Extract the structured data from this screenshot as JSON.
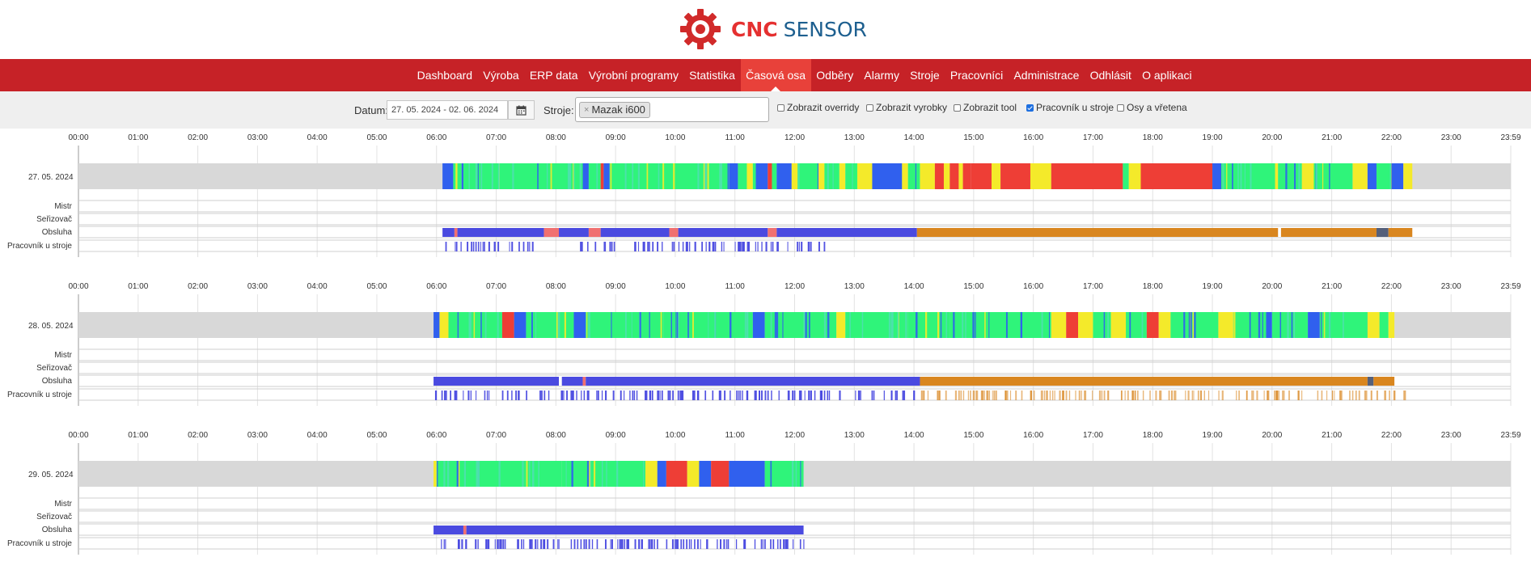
{
  "brand": {
    "cnc": "CNC",
    "sensor": "SENSOR"
  },
  "nav": [
    {
      "label": "Dashboard",
      "active": false
    },
    {
      "label": "Výroba",
      "active": false
    },
    {
      "label": "ERP data",
      "active": false
    },
    {
      "label": "Výrobní programy",
      "active": false
    },
    {
      "label": "Statistika",
      "active": false
    },
    {
      "label": "Časová osa",
      "active": true
    },
    {
      "label": "Odběry",
      "active": false
    },
    {
      "label": "Alarmy",
      "active": false
    },
    {
      "label": "Stroje",
      "active": false
    },
    {
      "label": "Pracovníci",
      "active": false
    },
    {
      "label": "Administrace",
      "active": false
    },
    {
      "label": "Odhlásit",
      "active": false
    },
    {
      "label": "O aplikaci",
      "active": false
    }
  ],
  "filters": {
    "date_label": "Datum:",
    "date_value": "27. 05. 2024 - 02. 06. 2024",
    "machine_label": "Stroje:",
    "machine_tag": "Mazak i600",
    "machine_tag_remove": "×",
    "checkboxes": [
      {
        "label": "Zobrazit overridy",
        "checked": false
      },
      {
        "label": "Zobrazit vyrobky",
        "checked": false
      },
      {
        "label": "Zobrazit tool",
        "checked": false
      },
      {
        "label": "Pracovník u stroje",
        "checked": true
      },
      {
        "label": "Osy a vřetena",
        "checked": false
      }
    ]
  },
  "colors": {
    "idle": "#d8d8d8",
    "running": "#2ff47a",
    "setup": "#3060ee",
    "stop": "#ee3e36",
    "warn": "#f4ea2a",
    "teal": "#4fe0b0",
    "operator": "#4a4ae0",
    "orange": "#d9861f",
    "grey_op": "#55607a",
    "pink": "#f07070"
  },
  "hours": [
    "00:00",
    "01:00",
    "02:00",
    "03:00",
    "04:00",
    "05:00",
    "06:00",
    "07:00",
    "08:00",
    "09:00",
    "10:00",
    "11:00",
    "12:00",
    "13:00",
    "14:00",
    "15:00",
    "16:00",
    "17:00",
    "18:00",
    "19:00",
    "20:00",
    "21:00",
    "22:00",
    "23:00",
    "23:59"
  ],
  "row_labels": {
    "mistr": "Mistr",
    "serizovac": "Seřizovač",
    "obsluha": "Obsluha",
    "pracovnik": "Pracovník u stroje"
  },
  "days": [
    {
      "date": "27. 05. 2024",
      "active_range": [
        6.1,
        22.35
      ],
      "segments": [
        [
          6.1,
          6.28,
          "setup"
        ],
        [
          6.28,
          6.32,
          "running"
        ],
        [
          6.32,
          6.35,
          "warn"
        ],
        [
          6.35,
          6.42,
          "running"
        ],
        [
          6.42,
          6.45,
          "setup"
        ],
        [
          6.45,
          8.45,
          "running"
        ],
        [
          8.45,
          8.55,
          "setup"
        ],
        [
          8.55,
          8.75,
          "running"
        ],
        [
          8.75,
          8.8,
          "stop"
        ],
        [
          8.8,
          8.9,
          "setup"
        ],
        [
          8.9,
          10.9,
          "running"
        ],
        [
          10.9,
          11.05,
          "setup"
        ],
        [
          11.05,
          11.2,
          "running"
        ],
        [
          11.2,
          11.3,
          "warn"
        ],
        [
          11.3,
          11.35,
          "running"
        ],
        [
          11.35,
          11.55,
          "setup"
        ],
        [
          11.55,
          11.62,
          "stop"
        ],
        [
          11.62,
          11.7,
          "running"
        ],
        [
          11.7,
          11.95,
          "setup"
        ],
        [
          11.95,
          12.05,
          "warn"
        ],
        [
          12.05,
          12.4,
          "running"
        ],
        [
          12.4,
          12.5,
          "warn"
        ],
        [
          12.5,
          12.75,
          "running"
        ],
        [
          12.75,
          12.85,
          "warn"
        ],
        [
          12.85,
          13.05,
          "running"
        ],
        [
          13.05,
          13.3,
          "warn"
        ],
        [
          13.3,
          13.8,
          "setup"
        ],
        [
          13.8,
          13.9,
          "warn"
        ],
        [
          13.9,
          14.1,
          "running"
        ],
        [
          14.1,
          14.35,
          "warn"
        ],
        [
          14.35,
          14.5,
          "stop"
        ],
        [
          14.5,
          14.6,
          "warn"
        ],
        [
          14.6,
          14.75,
          "stop"
        ],
        [
          14.75,
          14.82,
          "warn"
        ],
        [
          14.82,
          14.95,
          "stop"
        ],
        [
          14.95,
          15.3,
          "stop"
        ],
        [
          15.3,
          15.45,
          "warn"
        ],
        [
          15.45,
          15.95,
          "stop"
        ],
        [
          15.95,
          16.3,
          "warn"
        ],
        [
          16.3,
          17.5,
          "stop"
        ],
        [
          17.5,
          17.6,
          "running"
        ],
        [
          17.6,
          17.8,
          "warn"
        ],
        [
          17.8,
          19.0,
          "stop"
        ],
        [
          19.0,
          19.15,
          "setup"
        ],
        [
          19.15,
          20.05,
          "running"
        ],
        [
          20.05,
          20.1,
          "warn"
        ],
        [
          20.1,
          20.5,
          "running"
        ],
        [
          20.5,
          20.7,
          "warn"
        ],
        [
          20.7,
          21.35,
          "running"
        ],
        [
          21.35,
          21.6,
          "warn"
        ],
        [
          21.6,
          21.75,
          "setup"
        ],
        [
          21.75,
          22.0,
          "running"
        ],
        [
          22.0,
          22.2,
          "setup"
        ],
        [
          22.2,
          22.35,
          "warn"
        ]
      ],
      "mistr": [],
      "serizovac": [],
      "obsluha": [
        [
          6.1,
          6.3,
          "operator"
        ],
        [
          6.3,
          6.35,
          "pink"
        ],
        [
          6.35,
          7.8,
          "operator"
        ],
        [
          7.8,
          8.05,
          "pink"
        ],
        [
          8.05,
          8.55,
          "operator"
        ],
        [
          8.55,
          8.75,
          "pink"
        ],
        [
          8.75,
          9.9,
          "operator"
        ],
        [
          9.9,
          10.05,
          "pink"
        ],
        [
          10.05,
          11.55,
          "operator"
        ],
        [
          11.55,
          11.7,
          "pink"
        ],
        [
          11.7,
          14.05,
          "operator"
        ],
        [
          14.05,
          20.1,
          "orange"
        ],
        [
          20.15,
          21.75,
          "orange"
        ],
        [
          21.75,
          21.95,
          "grey_op"
        ],
        [
          21.95,
          22.35,
          "orange"
        ]
      ],
      "pracovnik": [
        [
          6.1,
          7.6,
          "operator"
        ],
        [
          8.4,
          9.0,
          "operator"
        ],
        [
          9.3,
          10.9,
          "operator"
        ],
        [
          10.9,
          12.5,
          "operator"
        ]
      ]
    },
    {
      "date": "28. 05. 2024",
      "active_range": [
        5.95,
        22.05
      ],
      "segments": [
        [
          5.95,
          6.05,
          "setup"
        ],
        [
          6.05,
          6.2,
          "warn"
        ],
        [
          6.2,
          7.1,
          "running"
        ],
        [
          7.1,
          7.3,
          "stop"
        ],
        [
          7.3,
          7.5,
          "setup"
        ],
        [
          7.5,
          8.3,
          "running"
        ],
        [
          8.3,
          8.5,
          "setup"
        ],
        [
          8.5,
          9.8,
          "running"
        ],
        [
          9.8,
          11.3,
          "running"
        ],
        [
          11.3,
          11.5,
          "setup"
        ],
        [
          11.5,
          12.7,
          "running"
        ],
        [
          12.7,
          12.85,
          "warn"
        ],
        [
          12.85,
          13.9,
          "running"
        ],
        [
          13.9,
          14.6,
          "running"
        ],
        [
          14.6,
          16.3,
          "running"
        ],
        [
          16.3,
          16.55,
          "warn"
        ],
        [
          16.55,
          16.75,
          "stop"
        ],
        [
          16.75,
          17.0,
          "warn"
        ],
        [
          17.0,
          17.3,
          "running"
        ],
        [
          17.3,
          17.55,
          "warn"
        ],
        [
          17.55,
          17.9,
          "running"
        ],
        [
          17.9,
          18.1,
          "stop"
        ],
        [
          18.1,
          18.3,
          "warn"
        ],
        [
          18.3,
          19.1,
          "running"
        ],
        [
          19.1,
          19.35,
          "warn"
        ],
        [
          19.35,
          19.9,
          "running"
        ],
        [
          19.9,
          20.0,
          "setup"
        ],
        [
          20.0,
          20.6,
          "running"
        ],
        [
          20.6,
          20.8,
          "setup"
        ],
        [
          20.8,
          21.6,
          "running"
        ],
        [
          21.6,
          21.8,
          "warn"
        ],
        [
          21.8,
          21.95,
          "running"
        ],
        [
          21.95,
          22.05,
          "warn"
        ]
      ],
      "mistr": [],
      "serizovac": [],
      "obsluha": [
        [
          5.95,
          8.05,
          "operator"
        ],
        [
          8.1,
          8.45,
          "operator"
        ],
        [
          8.45,
          8.5,
          "pink"
        ],
        [
          8.5,
          14.1,
          "operator"
        ],
        [
          14.1,
          21.6,
          "orange"
        ],
        [
          21.6,
          21.7,
          "grey_op"
        ],
        [
          21.7,
          22.05,
          "orange"
        ]
      ],
      "pracovnik": [
        [
          5.95,
          14.0,
          "operator"
        ],
        [
          14.0,
          22.3,
          "orange"
        ]
      ]
    },
    {
      "date": "29. 05. 2024",
      "active_range": [
        5.95,
        12.15
      ],
      "segments": [
        [
          5.95,
          6.0,
          "warn"
        ],
        [
          6.0,
          7.5,
          "running"
        ],
        [
          7.5,
          8.1,
          "running"
        ],
        [
          8.1,
          9.5,
          "running"
        ],
        [
          9.5,
          9.7,
          "warn"
        ],
        [
          9.7,
          9.85,
          "setup"
        ],
        [
          9.85,
          10.2,
          "stop"
        ],
        [
          10.2,
          10.4,
          "warn"
        ],
        [
          10.4,
          10.6,
          "setup"
        ],
        [
          10.6,
          10.9,
          "stop"
        ],
        [
          10.9,
          11.5,
          "setup"
        ],
        [
          11.5,
          12.15,
          "running"
        ]
      ],
      "mistr": [],
      "serizovac": [],
      "obsluha": [
        [
          5.95,
          6.45,
          "operator"
        ],
        [
          6.45,
          6.5,
          "pink"
        ],
        [
          6.5,
          12.15,
          "operator"
        ]
      ],
      "pracovnik": [
        [
          5.95,
          12.15,
          "operator"
        ]
      ]
    }
  ]
}
